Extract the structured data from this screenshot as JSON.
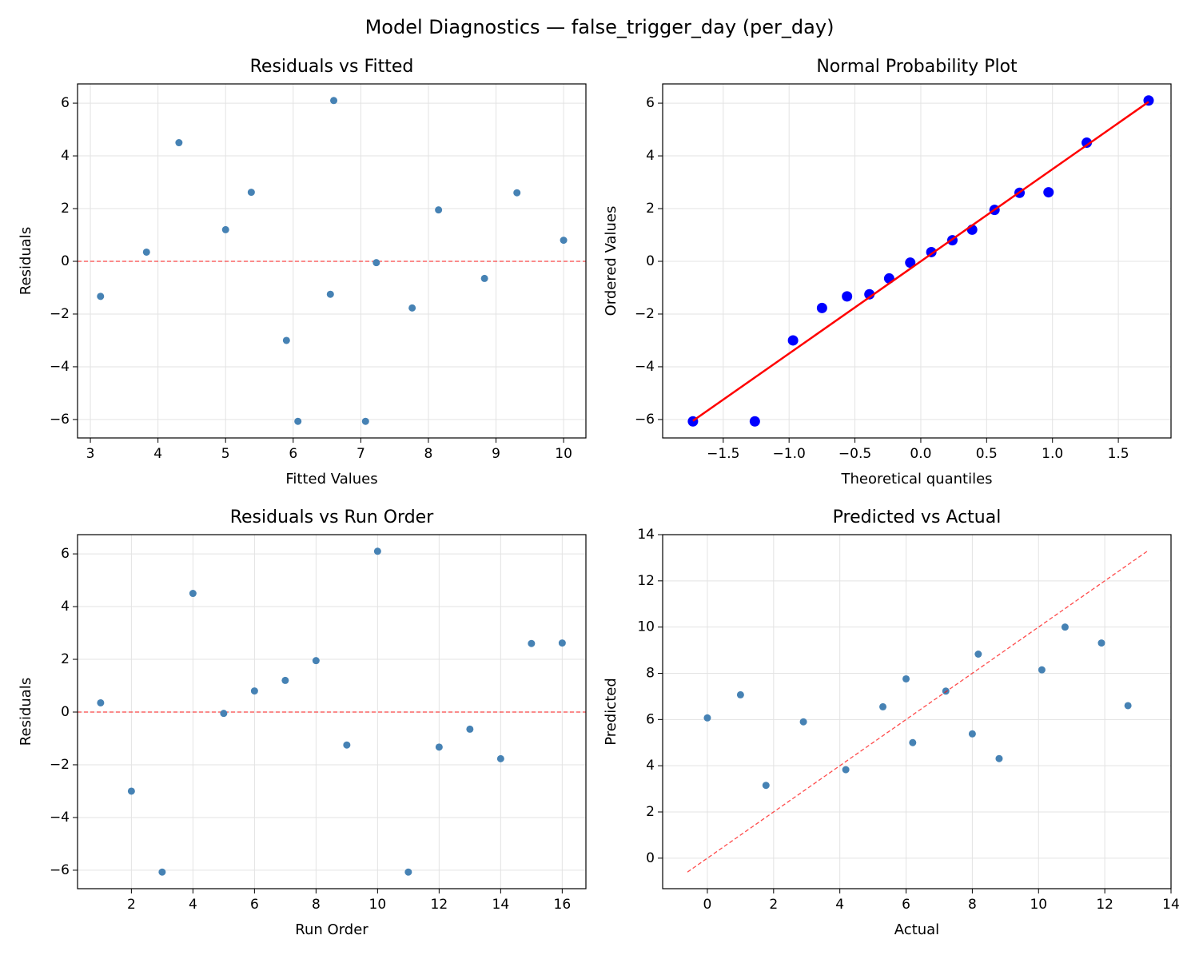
{
  "title": "Model Diagnostics — false_trigger_day (per_day)",
  "chart_data": [
    {
      "type": "scatter",
      "title": "Residuals vs Fitted",
      "xlabel": "Fitted Values",
      "ylabel": "Residuals",
      "xlim": [
        2.81,
        10.33
      ],
      "ylim": [
        -6.7,
        6.73
      ],
      "xticks": [
        3,
        4,
        5,
        6,
        7,
        8,
        9,
        10
      ],
      "yticks": [
        {
          "value": -6,
          "label": "−6"
        },
        {
          "value": -4,
          "label": "−4"
        },
        {
          "value": -2,
          "label": "−2"
        },
        0,
        2,
        4,
        6
      ],
      "grid": true,
      "series": [
        {
          "mode": "markers",
          "color": "#4682b4",
          "x": [
            3.15,
            3.83,
            4.31,
            5.0,
            5.38,
            5.9,
            6.07,
            6.55,
            6.6,
            7.07,
            7.23,
            7.76,
            8.15,
            8.83,
            9.31,
            10.0
          ],
          "values": [
            -1.33,
            0.35,
            4.5,
            1.2,
            2.62,
            -3.0,
            -6.07,
            -1.25,
            6.1,
            -6.07,
            -0.05,
            -1.77,
            1.95,
            -0.65,
            2.6,
            0.8
          ]
        }
      ],
      "hline": {
        "y": 0,
        "color": "#ff0000",
        "dashed": true
      }
    },
    {
      "type": "scatter",
      "title": "Normal Probability Plot",
      "xlabel": "Theoretical quantiles",
      "ylabel": "Ordered Values",
      "xlim": [
        -1.96,
        1.9
      ],
      "ylim": [
        -6.7,
        6.73
      ],
      "xticks": [
        {
          "value": -1.5,
          "label": "−1.5"
        },
        {
          "value": -1.0,
          "label": "−1.0"
        },
        {
          "value": -0.5,
          "label": "−0.5"
        },
        {
          "value": 0,
          "label": "0.0"
        },
        0.5,
        {
          "value": 1.0,
          "label": "1.0"
        },
        1.5
      ],
      "yticks": [
        {
          "value": -6,
          "label": "−6"
        },
        {
          "value": -4,
          "label": "−4"
        },
        {
          "value": -2,
          "label": "−2"
        },
        0,
        2,
        4,
        6
      ],
      "grid": true,
      "series": [
        {
          "mode": "markers",
          "color": "#0000ff",
          "size": 6.5,
          "x": [
            -1.73,
            -1.26,
            -0.97,
            -0.75,
            -0.56,
            -0.39,
            -0.24,
            -0.08,
            0.08,
            0.24,
            0.39,
            0.56,
            0.75,
            0.97,
            1.26,
            1.73
          ],
          "values": [
            -6.07,
            -6.07,
            -3.0,
            -1.77,
            -1.33,
            -1.25,
            -0.65,
            -0.05,
            0.35,
            0.8,
            1.2,
            1.95,
            2.6,
            2.62,
            4.5,
            6.1
          ]
        },
        {
          "mode": "line",
          "color": "#ff0000",
          "x": [
            -1.73,
            1.73
          ],
          "values": [
            -6.05,
            6.05
          ]
        }
      ]
    },
    {
      "type": "scatter",
      "title": "Residuals vs Run Order",
      "xlabel": "Run Order",
      "ylabel": "Residuals",
      "xlim": [
        0.25,
        16.77
      ],
      "ylim": [
        -6.7,
        6.73
      ],
      "xticks": [
        2,
        4,
        6,
        8,
        10,
        12,
        14,
        16
      ],
      "yticks": [
        {
          "value": -6,
          "label": "−6"
        },
        {
          "value": -4,
          "label": "−4"
        },
        {
          "value": -2,
          "label": "−2"
        },
        0,
        2,
        4,
        6
      ],
      "grid": true,
      "series": [
        {
          "mode": "markers",
          "color": "#4682b4",
          "x": [
            1,
            2,
            3,
            4,
            5,
            6,
            7,
            8,
            9,
            10,
            11,
            12,
            13,
            14,
            15,
            16
          ],
          "values": [
            0.35,
            -3.0,
            -6.07,
            4.5,
            -0.05,
            0.8,
            1.2,
            1.95,
            -1.25,
            6.1,
            -6.07,
            -1.33,
            -0.65,
            -1.77,
            2.6,
            2.62
          ]
        }
      ],
      "hline": {
        "y": 0,
        "color": "#ff0000",
        "dashed": true
      }
    },
    {
      "type": "scatter",
      "title": "Predicted vs Actual",
      "xlabel": "Actual",
      "ylabel": "Predicted",
      "xlim": [
        -1.35,
        14.0
      ],
      "ylim": [
        -1.32,
        14.0
      ],
      "xticks": [
        0,
        2,
        4,
        6,
        8,
        10,
        12,
        14
      ],
      "yticks": [
        0,
        2,
        4,
        6,
        8,
        10,
        12,
        14
      ],
      "grid": true,
      "series": [
        {
          "mode": "markers",
          "color": "#4682b4",
          "x": [
            0,
            1.0,
            1.77,
            2.9,
            4.18,
            5.3,
            6.0,
            6.2,
            7.2,
            8.0,
            8.18,
            8.81,
            10.1,
            10.8,
            11.9,
            12.7
          ],
          "values": [
            6.07,
            7.07,
            3.15,
            5.9,
            3.83,
            6.55,
            7.76,
            5.0,
            7.23,
            5.38,
            8.83,
            4.31,
            8.15,
            10.0,
            9.31,
            6.6
          ]
        },
        {
          "mode": "line",
          "color": "#ff0000",
          "dashed": true,
          "x": [
            -0.6,
            13.3
          ],
          "values": [
            -0.6,
            13.3
          ]
        }
      ]
    }
  ]
}
